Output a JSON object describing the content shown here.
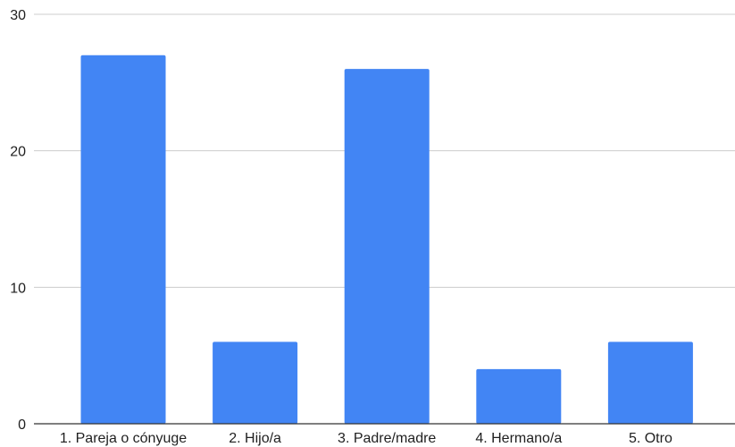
{
  "chart_data": {
    "type": "bar",
    "categories": [
      "1. Pareja o cónyuge",
      "2. Hijo/a",
      "3. Padre/madre",
      "4. Hermano/a",
      "5. Otro"
    ],
    "series": [
      {
        "values": [
          27,
          6,
          26,
          4,
          6
        ]
      }
    ],
    "title": "",
    "xlabel": "",
    "ylabel": "",
    "ylim": [
      0,
      30
    ],
    "yticks": [
      0,
      10,
      20,
      30
    ],
    "grid": true,
    "legend": "none",
    "colors": {
      "bar": "#4285f4",
      "grid": "#cccccc",
      "axis": "#333333"
    }
  }
}
